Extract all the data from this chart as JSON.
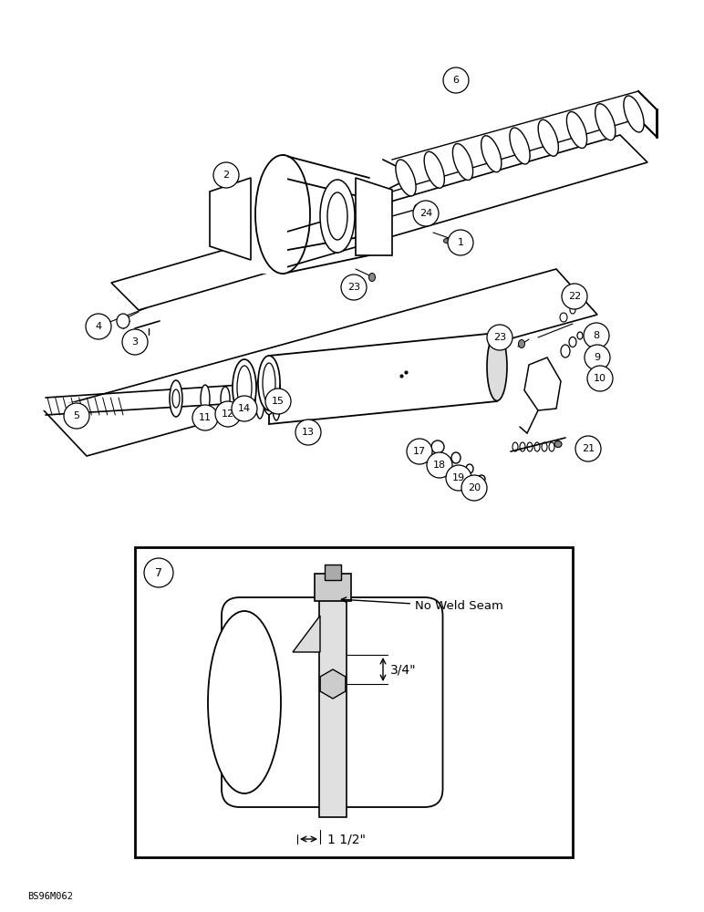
{
  "bg_color": "#ffffff",
  "fig_width": 7.72,
  "fig_height": 10.0,
  "dpi": 100,
  "watermark": "BS96M062",
  "detail_text1": "No Weld Seam",
  "detail_dim1": "3/4\"",
  "detail_dim2": "1 1/2\""
}
